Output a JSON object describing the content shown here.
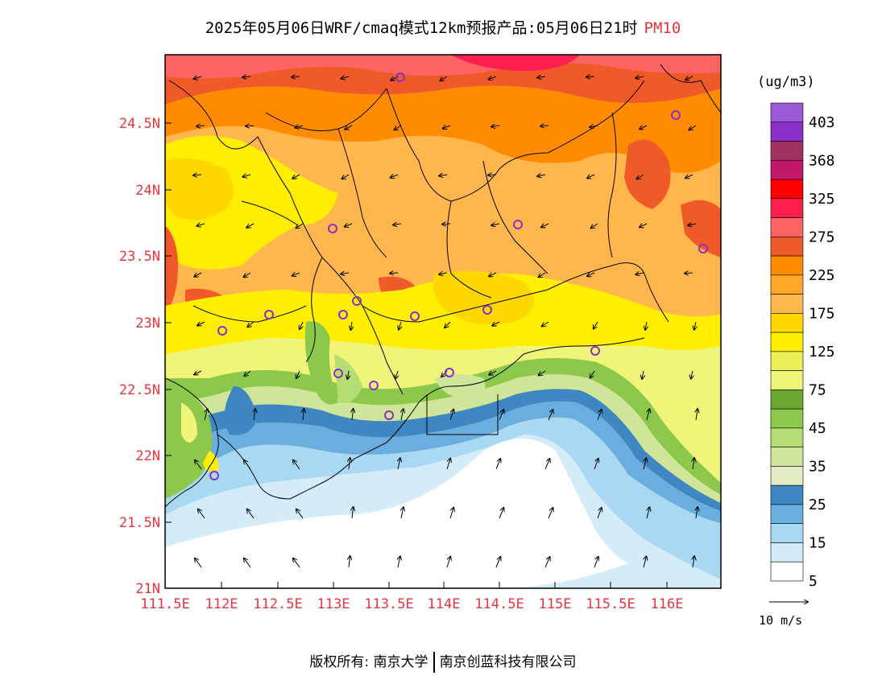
{
  "header": {
    "title": "2025年05月06日WRF/cmaq模式12km预报产品:05月06日21时",
    "variable": "PM10"
  },
  "map": {
    "lon_ticks": [
      "111.5E",
      "112E",
      "112.5E",
      "113E",
      "113.5E",
      "114E",
      "114.5E",
      "115E",
      "115.5E",
      "116E"
    ],
    "lat_ticks": [
      "24.5N",
      "24N",
      "23.5N",
      "23N",
      "22.5N",
      "22N",
      "21.5N",
      "21N"
    ],
    "stations": 17
  },
  "colorbar": {
    "unit": "(ug/m3)",
    "labels": [
      "403",
      "368",
      "325",
      "275",
      "225",
      "175",
      "125",
      "75",
      "45",
      "35",
      "25",
      "15",
      "5"
    ],
    "colors": [
      "#9b59d6",
      "#8a2fc8",
      "#a0325f",
      "#c2186b",
      "#ff0000",
      "#ff1f4f",
      "#ff6464",
      "#f05a28",
      "#ff8c00",
      "#ffa726",
      "#ffb74d",
      "#ffd700",
      "#ffee00",
      "#eaf05a",
      "#f0f57a",
      "#6aa832",
      "#8cc84b",
      "#b6dd73",
      "#cfe69a",
      "#dfecc4",
      "#3f87c2",
      "#6aaee0",
      "#a8d8f4",
      "#d3ecf8",
      "#ffffff"
    ]
  },
  "wind_reference": {
    "label": "10 m/s"
  },
  "footer": {
    "owner": "版权所有: 南京大学",
    "company": "南京创蓝科技有限公司"
  },
  "legend": {
    "colors": {
      "purple": "#9b59d6",
      "red": "#ff0000",
      "orange": "#ff8c00",
      "yellow": "#ffee00",
      "green": "#8cc84b",
      "blue": "#3f87c2",
      "white": "#ffffff"
    }
  }
}
